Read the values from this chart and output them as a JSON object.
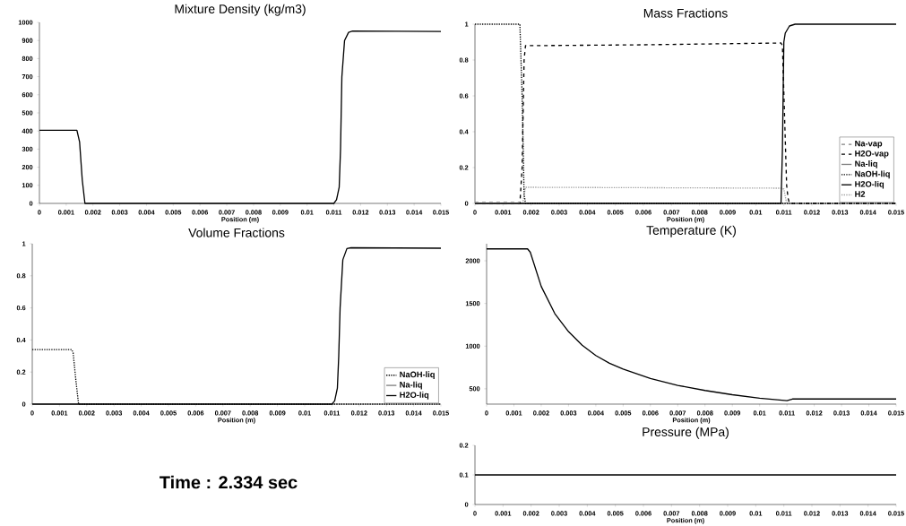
{
  "chart_data": [
    {
      "type": "line",
      "title": "Mixture Density (kg/m3)",
      "xlabel": "Position (m)",
      "xlim": [
        0,
        0.015
      ],
      "xticks": [
        0,
        0.001,
        0.002,
        0.003,
        0.004,
        0.005,
        0.006,
        0.007,
        0.008,
        0.009,
        0.01,
        0.011,
        0.012,
        0.013,
        0.014,
        0.015
      ],
      "ylim": [
        0,
        1000
      ],
      "yticks": [
        0,
        100,
        200,
        300,
        400,
        500,
        600,
        700,
        800,
        900,
        1000
      ],
      "legend": false,
      "series": [
        {
          "color": "#000000",
          "line_style": "solid",
          "x": [
            0,
            0.0014,
            0.0015,
            0.0016,
            0.0017,
            0.011,
            0.0111,
            0.0112,
            0.01125,
            0.0113,
            0.0114,
            0.01155,
            0.0117,
            0.015
          ],
          "values": [
            404,
            404,
            340,
            130,
            0,
            0,
            20,
            90,
            300,
            700,
            900,
            945,
            952,
            950
          ]
        }
      ]
    },
    {
      "type": "line",
      "title": "Mass Fractions",
      "xlabel": "Position (m)",
      "xlim": [
        0,
        0.015
      ],
      "xticks": [
        0,
        0.001,
        0.002,
        0.003,
        0.004,
        0.005,
        0.006,
        0.007,
        0.008,
        0.009,
        0.01,
        0.011,
        0.012,
        0.013,
        0.014,
        0.015
      ],
      "ylim": [
        0,
        1
      ],
      "yticks": [
        0,
        0.2,
        0.4,
        0.6,
        0.8,
        1
      ],
      "legend": "bottom right",
      "series": [
        {
          "name": "Na-vap",
          "color": "#808080",
          "line_style": "dashed",
          "x": [
            0,
            0.0016
          ],
          "values": [
            0.005,
            0.005
          ]
        },
        {
          "name": "H2O-vap",
          "color": "#000000",
          "line_style": "dashed",
          "x": [
            0,
            0.0016,
            0.00168,
            0.00175,
            0.0018,
            0.006,
            0.0109,
            0.01095,
            0.0111,
            0.01115,
            0.0112,
            0.015
          ],
          "values": [
            0,
            0,
            0.2,
            0.8,
            0.88,
            0.885,
            0.895,
            0.88,
            0.1,
            0.03,
            0,
            0
          ]
        },
        {
          "name": "Na-liq",
          "color": "#808080",
          "line_style": "solid"
        },
        {
          "name": "NaOH-liq",
          "color": "#000000",
          "line_style": "dotted",
          "x": [
            0,
            0.0016,
            0.00168,
            0.00175,
            0.0018,
            0.015
          ],
          "values": [
            1,
            1,
            0.6,
            0.05,
            0,
            0
          ]
        },
        {
          "name": "H2O-liq",
          "color": "#000000",
          "line_style": "solid",
          "x": [
            0,
            0.0109,
            0.01095,
            0.011,
            0.01105,
            0.0112,
            0.0114,
            0.015
          ],
          "values": [
            0,
            0,
            0.3,
            0.9,
            0.95,
            0.99,
            1,
            1
          ]
        },
        {
          "name": "H2",
          "color": "#a0a0a0",
          "line_style": "dotted",
          "x": [
            0,
            0.0017,
            0.0018,
            0.0109,
            0.011,
            0.0111,
            0.015
          ],
          "values": [
            0,
            0,
            0.09,
            0.085,
            0.08,
            0,
            0
          ]
        }
      ]
    },
    {
      "type": "line",
      "title": "Volume Fractions",
      "xlabel": "Position (m)",
      "xlim": [
        0,
        0.015
      ],
      "xticks": [
        0,
        0.001,
        0.002,
        0.003,
        0.004,
        0.005,
        0.006,
        0.007,
        0.008,
        0.009,
        0.01,
        0.011,
        0.012,
        0.013,
        0.014,
        0.015
      ],
      "ylim": [
        0,
        1
      ],
      "yticks": [
        0,
        0.2,
        0.4,
        0.6,
        0.8,
        1
      ],
      "legend": "bottom right",
      "series": [
        {
          "name": "NaOH-liq",
          "color": "#000000",
          "line_style": "dotted",
          "x": [
            0,
            0.00145,
            0.0015,
            0.0016,
            0.0017,
            0.015
          ],
          "values": [
            0.34,
            0.34,
            0.32,
            0.15,
            0,
            0
          ]
        },
        {
          "name": "Na-liq",
          "color": "#808080",
          "line_style": "solid"
        },
        {
          "name": "H2O-liq",
          "color": "#000000",
          "line_style": "solid",
          "x": [
            0,
            0.011,
            0.0111,
            0.0112,
            0.01125,
            0.0113,
            0.0114,
            0.01155,
            0.0117,
            0.015
          ],
          "values": [
            0,
            0,
            0.02,
            0.1,
            0.3,
            0.6,
            0.9,
            0.97,
            0.975,
            0.972
          ]
        }
      ]
    },
    {
      "type": "line",
      "title": "Temperature (K)",
      "xlabel": "Position (m)",
      "xlim": [
        0,
        0.015
      ],
      "xticks": [
        0,
        0.001,
        0.002,
        0.003,
        0.004,
        0.005,
        0.006,
        0.007,
        0.008,
        0.009,
        0.01,
        0.011,
        0.012,
        0.013,
        0.014,
        0.015
      ],
      "ylim": [
        320,
        2200
      ],
      "yticks": [
        500,
        1000,
        1500,
        2000
      ],
      "legend": false,
      "series": [
        {
          "color": "#000000",
          "line_style": "solid",
          "x": [
            0,
            0.0015,
            0.0016,
            0.0018,
            0.002,
            0.0025,
            0.003,
            0.0035,
            0.004,
            0.0045,
            0.005,
            0.006,
            0.007,
            0.008,
            0.009,
            0.01,
            0.011,
            0.0112,
            0.015
          ],
          "values": [
            2140,
            2140,
            2100,
            1900,
            1700,
            1380,
            1170,
            1010,
            890,
            800,
            730,
            620,
            540,
            480,
            430,
            390,
            360,
            380,
            380
          ]
        }
      ]
    },
    {
      "type": "line",
      "title": "Pressure (MPa)",
      "xlabel": "Position (m)",
      "xlim": [
        0,
        0.015
      ],
      "xticks": [
        0,
        0.001,
        0.002,
        0.003,
        0.004,
        0.005,
        0.006,
        0.007,
        0.008,
        0.009,
        0.01,
        0.011,
        0.012,
        0.013,
        0.014,
        0.015
      ],
      "ylim": [
        0,
        0.2
      ],
      "yticks": [
        0,
        0.1,
        0.2
      ],
      "legend": false,
      "series": [
        {
          "color": "#000000",
          "line_style": "solid",
          "x": [
            0,
            0.015
          ],
          "values": [
            0.1,
            0.1
          ]
        }
      ]
    },
    {
      "type": "other",
      "title": "Time : 2.334 sec"
    }
  ]
}
